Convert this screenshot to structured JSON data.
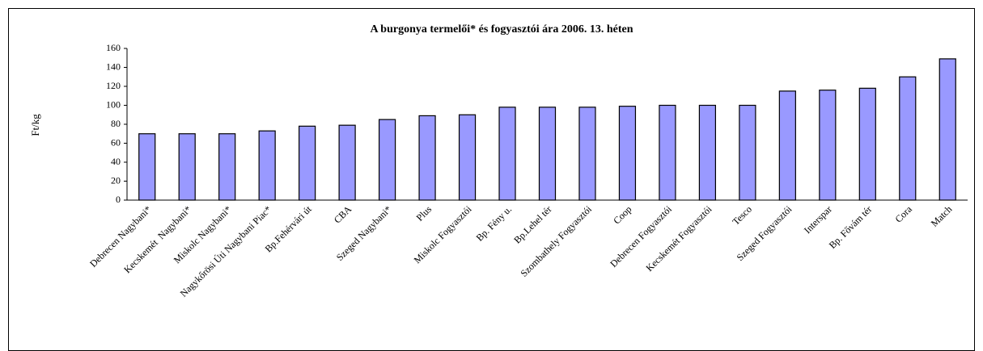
{
  "chart_data": {
    "type": "bar",
    "title": "A burgonya termelői* és fogyasztói ára 2006. 13. héten",
    "y_label": "Ft/kg",
    "categories": [
      "Debrecen Nagybani*",
      "Kecskemét  Nagybani*",
      "Miskolc Nagybani*",
      "Nagykőrösi Úti Nagybani Piac*",
      "Bp.Fehérvári út",
      "CBA",
      "Szeged Nagybani*",
      "Plus",
      "Miskolc Fogyasztói",
      "Bp. Fény u.",
      "Bp.Lehel tér",
      "Szombathely Fogyasztói",
      "Coop",
      "Debrecen Fogyasztói",
      "Kecskemét Fogyasztói",
      "Tesco",
      "Szeged Fogyasztói",
      "Interspar",
      "Bp. Fővám tér",
      "Cora",
      "Match"
    ],
    "values": [
      70,
      70,
      70,
      73,
      78,
      79,
      85,
      89,
      90,
      98,
      98,
      98,
      99,
      100,
      100,
      100,
      115,
      116,
      118,
      130,
      149
    ],
    "color": "#9999ff",
    "ylim": [
      0,
      160
    ],
    "yticks": [
      0,
      20,
      40,
      60,
      80,
      100,
      120,
      140,
      160
    ],
    "grid": false
  }
}
